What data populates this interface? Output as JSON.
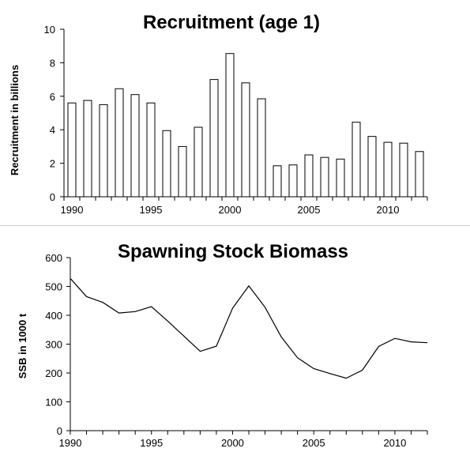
{
  "chart_data": [
    {
      "type": "bar",
      "title": "Recruitment (age 1)",
      "ylabel": "Recruitment in billions",
      "xlabel": "",
      "categories": [
        1990,
        1991,
        1992,
        1993,
        1994,
        1995,
        1996,
        1997,
        1998,
        1999,
        2000,
        2001,
        2002,
        2003,
        2004,
        2005,
        2006,
        2007,
        2008,
        2009,
        2010,
        2011,
        2012
      ],
      "values": [
        5.6,
        5.75,
        5.5,
        6.45,
        6.1,
        5.6,
        3.95,
        3.0,
        4.15,
        7.0,
        8.55,
        6.8,
        5.85,
        1.85,
        1.9,
        2.5,
        2.35,
        2.25,
        4.45,
        3.6,
        3.25,
        3.2,
        2.7
      ],
      "ylim": [
        0,
        10
      ],
      "yticks": [
        0,
        2,
        4,
        6,
        8,
        10
      ],
      "xticks": [
        1990,
        1995,
        2000,
        2005,
        2010
      ],
      "grid": false
    },
    {
      "type": "line",
      "title": "Spawning Stock Biomass",
      "ylabel": "SSB in 1000 t",
      "xlabel": "",
      "x": [
        1990,
        1991,
        1992,
        1993,
        1994,
        1995,
        1996,
        1997,
        1998,
        1999,
        2000,
        2001,
        2002,
        2003,
        2004,
        2005,
        2006,
        2007,
        2008,
        2009,
        2010,
        2011,
        2012
      ],
      "values": [
        528,
        465,
        445,
        408,
        413,
        430,
        380,
        328,
        275,
        293,
        425,
        502,
        428,
        325,
        253,
        215,
        198,
        182,
        210,
        292,
        320,
        308,
        305
      ],
      "ylim": [
        0,
        600
      ],
      "xlim": [
        1990,
        2012
      ],
      "yticks": [
        0,
        100,
        200,
        300,
        400,
        500,
        600
      ],
      "xticks": [
        1990,
        1995,
        2000,
        2005,
        2010
      ],
      "grid": false
    }
  ]
}
